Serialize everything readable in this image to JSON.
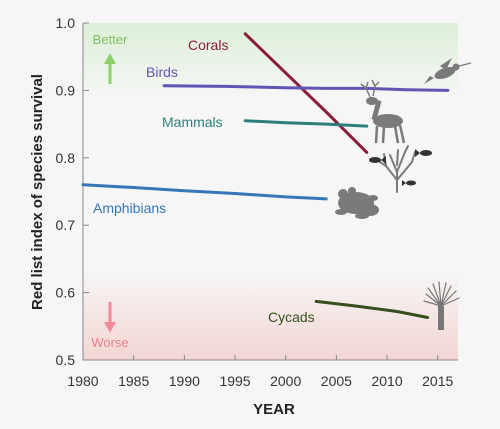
{
  "chart_data": {
    "type": "line",
    "title": "",
    "xlabel": "YEAR",
    "ylabel": "Red list index of species survival",
    "xlim": [
      1980,
      2017
    ],
    "ylim": [
      0.5,
      1.0
    ],
    "x_ticks": [
      "1980",
      "1985",
      "1990",
      "1995",
      "2000",
      "2005",
      "2010",
      "2015"
    ],
    "y_ticks": [
      "0.5",
      "0.6",
      "0.7",
      "0.8",
      "0.9",
      "1.0"
    ],
    "grid": false,
    "zones": [
      {
        "label": "Better",
        "direction": "up",
        "color": "#7dc35a"
      },
      {
        "label": "Worse",
        "direction": "down",
        "color": "#e97f8e"
      }
    ],
    "series": [
      {
        "name": "Corals",
        "color": "#8c1d3a",
        "icon": "coral-icon",
        "x": [
          1996,
          2000,
          2004,
          2008
        ],
        "y": [
          0.984,
          0.926,
          0.868,
          0.808
        ]
      },
      {
        "name": "Birds",
        "color": "#6155b4",
        "icon": "hummingbird-icon",
        "x": [
          1988,
          1994,
          2000,
          2004,
          2008,
          2012,
          2016
        ],
        "y": [
          0.907,
          0.906,
          0.904,
          0.903,
          0.903,
          0.901,
          0.9
        ]
      },
      {
        "name": "Mammals",
        "color": "#2d7f7c",
        "icon": "deer-icon",
        "x": [
          1996,
          2000,
          2004,
          2008
        ],
        "y": [
          0.855,
          0.852,
          0.85,
          0.847
        ]
      },
      {
        "name": "Amphibians",
        "color": "#3577b7",
        "icon": "frog-icon",
        "x": [
          1980,
          1985,
          1990,
          1995,
          2000,
          2004
        ],
        "y": [
          0.76,
          0.756,
          0.751,
          0.747,
          0.742,
          0.739
        ]
      },
      {
        "name": "Cycads",
        "color": "#354f1d",
        "icon": "cycad-icon",
        "x": [
          2003,
          2007,
          2011,
          2014
        ],
        "y": [
          0.587,
          0.58,
          0.572,
          0.563
        ]
      }
    ]
  }
}
